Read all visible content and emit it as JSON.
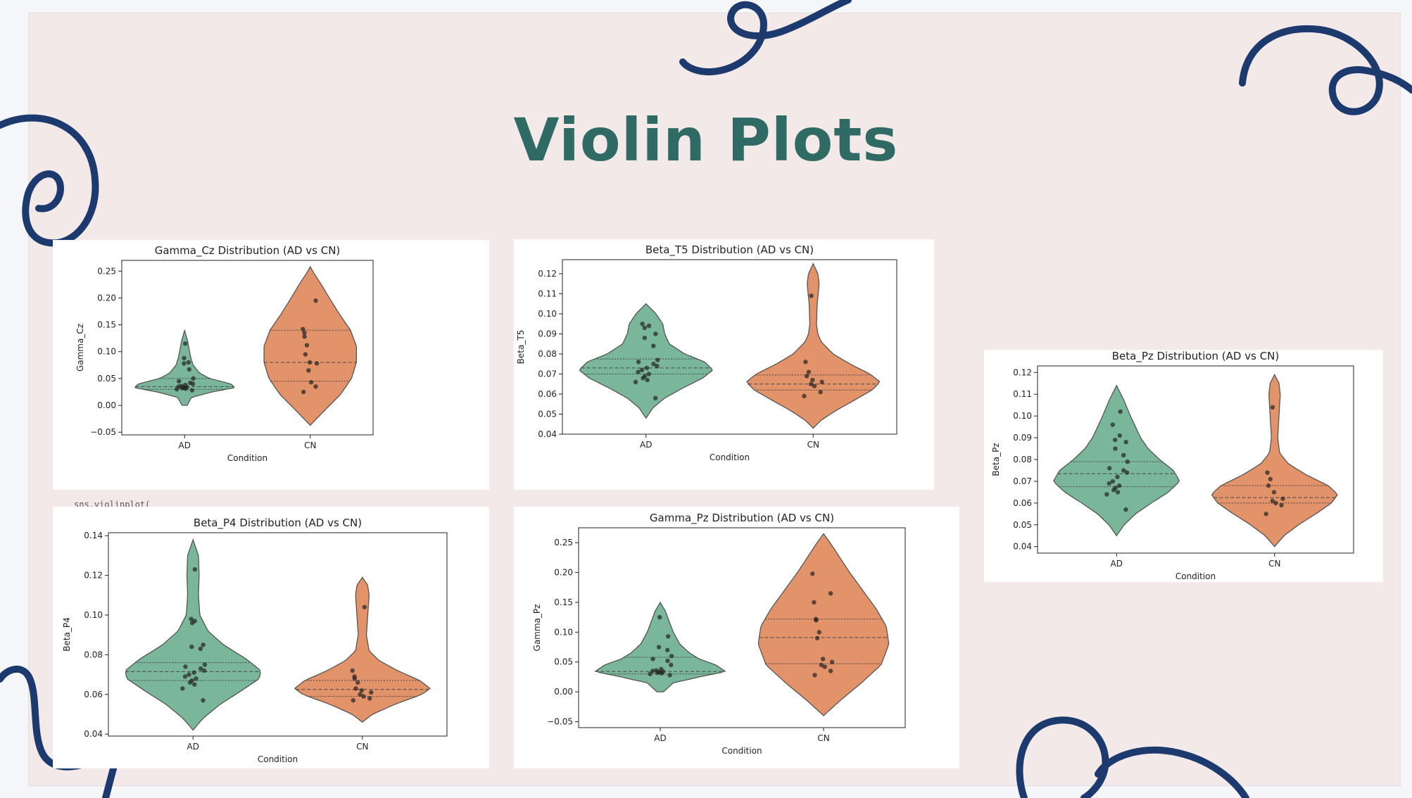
{
  "slide": {
    "title": "Violin Plots",
    "code_fragment": "sns.violinplot(",
    "colors": {
      "title": "#2f6a64",
      "swirl": "#1c3a6e",
      "background": "#f4e9e9",
      "ad_fill": "#7ab69a",
      "cn_fill": "#e3936a",
      "point": "#222222"
    }
  },
  "chart_data": [
    {
      "type": "violin",
      "title": "Gamma_Cz Distribution (AD vs CN)",
      "xlabel": "Condition",
      "ylabel": "Gamma_Cz",
      "categories": [
        "AD",
        "CN"
      ],
      "ylim": [
        -0.055,
        0.27
      ],
      "yticks": [
        -0.05,
        0.0,
        0.05,
        0.1,
        0.15,
        0.2,
        0.25
      ],
      "ytick_labels": [
        "−0.05",
        "0.00",
        "0.05",
        "0.10",
        "0.15",
        "0.20",
        "0.25"
      ],
      "series": [
        {
          "category": "AD",
          "min": 0.0,
          "max": 0.14,
          "profile": [
            [
              0.0,
              0.05
            ],
            [
              0.015,
              0.14
            ],
            [
              0.025,
              0.55
            ],
            [
              0.033,
              1.0
            ],
            [
              0.04,
              0.92
            ],
            [
              0.05,
              0.5
            ],
            [
              0.06,
              0.3
            ],
            [
              0.075,
              0.17
            ],
            [
              0.09,
              0.12
            ],
            [
              0.105,
              0.09
            ],
            [
              0.12,
              0.06
            ],
            [
              0.14,
              0.0
            ]
          ],
          "quartiles": [
            0.03,
            0.035,
            0.05
          ],
          "points": [
            0.028,
            0.03,
            0.031,
            0.032,
            0.033,
            0.034,
            0.035,
            0.036,
            0.038,
            0.04,
            0.042,
            0.045,
            0.05,
            0.067,
            0.078,
            0.08,
            0.088,
            0.115
          ]
        },
        {
          "category": "CN",
          "min": -0.037,
          "max": 0.258,
          "profile": [
            [
              -0.037,
              0.0
            ],
            [
              -0.01,
              0.28
            ],
            [
              0.02,
              0.6
            ],
            [
              0.05,
              0.82
            ],
            [
              0.08,
              0.92
            ],
            [
              0.11,
              0.92
            ],
            [
              0.14,
              0.8
            ],
            [
              0.17,
              0.58
            ],
            [
              0.2,
              0.38
            ],
            [
              0.225,
              0.22
            ],
            [
              0.245,
              0.08
            ],
            [
              0.258,
              0.0
            ]
          ],
          "quartiles": [
            0.045,
            0.08,
            0.14
          ],
          "points": [
            0.025,
            0.035,
            0.043,
            0.065,
            0.078,
            0.08,
            0.095,
            0.112,
            0.128,
            0.135,
            0.142,
            0.195
          ]
        }
      ]
    },
    {
      "type": "violin",
      "title": "Beta_T5 Distribution (AD vs CN)",
      "xlabel": "Condition",
      "ylabel": "Beta_T5",
      "categories": [
        "AD",
        "CN"
      ],
      "ylim": [
        0.04,
        0.127
      ],
      "yticks": [
        0.04,
        0.05,
        0.06,
        0.07,
        0.08,
        0.09,
        0.1,
        0.11,
        0.12
      ],
      "ytick_labels": [
        "0.04",
        "0.05",
        "0.06",
        "0.07",
        "0.08",
        "0.09",
        "0.10",
        "0.11",
        "0.12"
      ],
      "series": [
        {
          "category": "AD",
          "min": 0.048,
          "max": 0.105,
          "profile": [
            [
              0.048,
              0.0
            ],
            [
              0.053,
              0.1
            ],
            [
              0.058,
              0.28
            ],
            [
              0.063,
              0.55
            ],
            [
              0.068,
              0.85
            ],
            [
              0.072,
              1.0
            ],
            [
              0.076,
              0.88
            ],
            [
              0.08,
              0.58
            ],
            [
              0.085,
              0.35
            ],
            [
              0.09,
              0.28
            ],
            [
              0.095,
              0.25
            ],
            [
              0.1,
              0.15
            ],
            [
              0.105,
              0.0
            ]
          ],
          "quartiles": [
            0.07,
            0.073,
            0.0775
          ],
          "points": [
            0.058,
            0.066,
            0.067,
            0.068,
            0.069,
            0.07,
            0.071,
            0.072,
            0.073,
            0.074,
            0.075,
            0.076,
            0.077,
            0.084,
            0.088,
            0.09,
            0.093,
            0.094,
            0.095
          ]
        },
        {
          "category": "CN",
          "min": 0.043,
          "max": 0.125,
          "profile": [
            [
              0.043,
              0.0
            ],
            [
              0.047,
              0.12
            ],
            [
              0.052,
              0.35
            ],
            [
              0.057,
              0.62
            ],
            [
              0.062,
              0.88
            ],
            [
              0.066,
              1.0
            ],
            [
              0.07,
              0.85
            ],
            [
              0.075,
              0.55
            ],
            [
              0.08,
              0.3
            ],
            [
              0.086,
              0.12
            ],
            [
              0.09,
              0.07
            ],
            [
              0.095,
              0.05
            ],
            [
              0.105,
              0.06
            ],
            [
              0.115,
              0.09
            ],
            [
              0.12,
              0.07
            ],
            [
              0.125,
              0.0
            ]
          ],
          "quartiles": [
            0.062,
            0.065,
            0.0695
          ],
          "points": [
            0.059,
            0.061,
            0.064,
            0.065,
            0.066,
            0.067,
            0.069,
            0.071,
            0.076,
            0.109
          ]
        }
      ]
    },
    {
      "type": "violin",
      "title": "Beta_Pz Distribution (AD vs CN)",
      "xlabel": "Condition",
      "ylabel": "Beta_Pz",
      "categories": [
        "AD",
        "CN"
      ],
      "ylim": [
        0.037,
        0.123
      ],
      "yticks": [
        0.04,
        0.05,
        0.06,
        0.07,
        0.08,
        0.09,
        0.1,
        0.11,
        0.12
      ],
      "ytick_labels": [
        "0.04",
        "0.05",
        "0.06",
        "0.07",
        "0.08",
        "0.09",
        "0.10",
        "0.11",
        "0.12"
      ],
      "series": [
        {
          "category": "AD",
          "min": 0.045,
          "max": 0.114,
          "profile": [
            [
              0.045,
              0.0
            ],
            [
              0.05,
              0.12
            ],
            [
              0.055,
              0.3
            ],
            [
              0.06,
              0.55
            ],
            [
              0.065,
              0.82
            ],
            [
              0.07,
              1.0
            ],
            [
              0.075,
              0.9
            ],
            [
              0.08,
              0.68
            ],
            [
              0.085,
              0.5
            ],
            [
              0.09,
              0.38
            ],
            [
              0.095,
              0.3
            ],
            [
              0.1,
              0.22
            ],
            [
              0.107,
              0.12
            ],
            [
              0.114,
              0.0
            ]
          ],
          "quartiles": [
            0.0675,
            0.0735,
            0.079
          ],
          "points": [
            0.057,
            0.064,
            0.065,
            0.066,
            0.067,
            0.068,
            0.069,
            0.07,
            0.072,
            0.074,
            0.075,
            0.076,
            0.079,
            0.082,
            0.085,
            0.088,
            0.089,
            0.091,
            0.096,
            0.102
          ]
        },
        {
          "category": "CN",
          "min": 0.04,
          "max": 0.119,
          "profile": [
            [
              0.04,
              0.0
            ],
            [
              0.045,
              0.15
            ],
            [
              0.05,
              0.38
            ],
            [
              0.055,
              0.65
            ],
            [
              0.06,
              0.9
            ],
            [
              0.064,
              1.0
            ],
            [
              0.068,
              0.85
            ],
            [
              0.073,
              0.5
            ],
            [
              0.078,
              0.22
            ],
            [
              0.083,
              0.08
            ],
            [
              0.09,
              0.05
            ],
            [
              0.1,
              0.07
            ],
            [
              0.11,
              0.09
            ],
            [
              0.115,
              0.07
            ],
            [
              0.119,
              0.0
            ]
          ],
          "quartiles": [
            0.06,
            0.0625,
            0.068
          ],
          "points": [
            0.055,
            0.059,
            0.06,
            0.061,
            0.062,
            0.065,
            0.068,
            0.071,
            0.074,
            0.104
          ]
        }
      ]
    },
    {
      "type": "violin",
      "title": "Beta_P4 Distribution (AD vs CN)",
      "xlabel": "Condition",
      "ylabel": "Beta_P4",
      "categories": [
        "AD",
        "CN"
      ],
      "ylim": [
        0.039,
        0.1415
      ],
      "yticks": [
        0.04,
        0.06,
        0.08,
        0.1,
        0.12,
        0.14
      ],
      "ytick_labels": [
        "0.04",
        "0.06",
        "0.08",
        "0.10",
        "0.12",
        "0.14"
      ],
      "series": [
        {
          "category": "AD",
          "min": 0.042,
          "max": 0.138,
          "profile": [
            [
              0.042,
              0.0
            ],
            [
              0.048,
              0.15
            ],
            [
              0.055,
              0.4
            ],
            [
              0.062,
              0.72
            ],
            [
              0.068,
              0.98
            ],
            [
              0.072,
              1.0
            ],
            [
              0.078,
              0.78
            ],
            [
              0.085,
              0.45
            ],
            [
              0.092,
              0.22
            ],
            [
              0.1,
              0.1
            ],
            [
              0.11,
              0.08
            ],
            [
              0.12,
              0.09
            ],
            [
              0.13,
              0.08
            ],
            [
              0.138,
              0.0
            ]
          ],
          "quartiles": [
            0.067,
            0.0715,
            0.076
          ],
          "points": [
            0.057,
            0.063,
            0.065,
            0.066,
            0.067,
            0.068,
            0.069,
            0.07,
            0.071,
            0.072,
            0.073,
            0.074,
            0.075,
            0.083,
            0.084,
            0.085,
            0.096,
            0.097,
            0.098,
            0.123
          ]
        },
        {
          "category": "CN",
          "min": 0.046,
          "max": 0.119,
          "profile": [
            [
              0.046,
              0.0
            ],
            [
              0.05,
              0.15
            ],
            [
              0.055,
              0.48
            ],
            [
              0.06,
              0.88
            ],
            [
              0.063,
              1.0
            ],
            [
              0.067,
              0.85
            ],
            [
              0.072,
              0.52
            ],
            [
              0.077,
              0.25
            ],
            [
              0.082,
              0.1
            ],
            [
              0.09,
              0.06
            ],
            [
              0.1,
              0.08
            ],
            [
              0.11,
              0.1
            ],
            [
              0.115,
              0.08
            ],
            [
              0.119,
              0.0
            ]
          ],
          "quartiles": [
            0.059,
            0.0625,
            0.067
          ],
          "points": [
            0.057,
            0.058,
            0.059,
            0.06,
            0.061,
            0.062,
            0.063,
            0.066,
            0.068,
            0.069,
            0.072,
            0.104
          ]
        }
      ]
    },
    {
      "type": "violin",
      "title": "Gamma_Pz Distribution (AD vs CN)",
      "xlabel": "Condition",
      "ylabel": "Gamma_Pz",
      "categories": [
        "AD",
        "CN"
      ],
      "ylim": [
        -0.06,
        0.275
      ],
      "yticks": [
        -0.05,
        0.0,
        0.05,
        0.1,
        0.15,
        0.2,
        0.25
      ],
      "ytick_labels": [
        "−0.05",
        "0.00",
        "0.05",
        "0.10",
        "0.15",
        "0.20",
        "0.25"
      ],
      "series": [
        {
          "category": "AD",
          "min": 0.0,
          "max": 0.15,
          "profile": [
            [
              0.0,
              0.05
            ],
            [
              0.015,
              0.2
            ],
            [
              0.025,
              0.6
            ],
            [
              0.034,
              1.0
            ],
            [
              0.045,
              0.85
            ],
            [
              0.055,
              0.6
            ],
            [
              0.065,
              0.45
            ],
            [
              0.08,
              0.3
            ],
            [
              0.1,
              0.2
            ],
            [
              0.12,
              0.13
            ],
            [
              0.135,
              0.08
            ],
            [
              0.15,
              0.0
            ]
          ],
          "quartiles": [
            0.03,
            0.034,
            0.058
          ],
          "points": [
            0.028,
            0.03,
            0.031,
            0.032,
            0.033,
            0.034,
            0.035,
            0.036,
            0.038,
            0.045,
            0.052,
            0.055,
            0.06,
            0.07,
            0.075,
            0.093,
            0.125
          ]
        },
        {
          "category": "CN",
          "min": -0.04,
          "max": 0.265,
          "profile": [
            [
              -0.04,
              0.0
            ],
            [
              -0.015,
              0.25
            ],
            [
              0.015,
              0.58
            ],
            [
              0.045,
              0.88
            ],
            [
              0.08,
              1.0
            ],
            [
              0.11,
              0.96
            ],
            [
              0.14,
              0.8
            ],
            [
              0.17,
              0.6
            ],
            [
              0.2,
              0.4
            ],
            [
              0.23,
              0.22
            ],
            [
              0.25,
              0.1
            ],
            [
              0.265,
              0.0
            ]
          ],
          "quartiles": [
            0.047,
            0.091,
            0.122
          ],
          "points": [
            0.028,
            0.035,
            0.042,
            0.045,
            0.05,
            0.055,
            0.09,
            0.1,
            0.12,
            0.122,
            0.15,
            0.165,
            0.198
          ]
        }
      ]
    }
  ]
}
